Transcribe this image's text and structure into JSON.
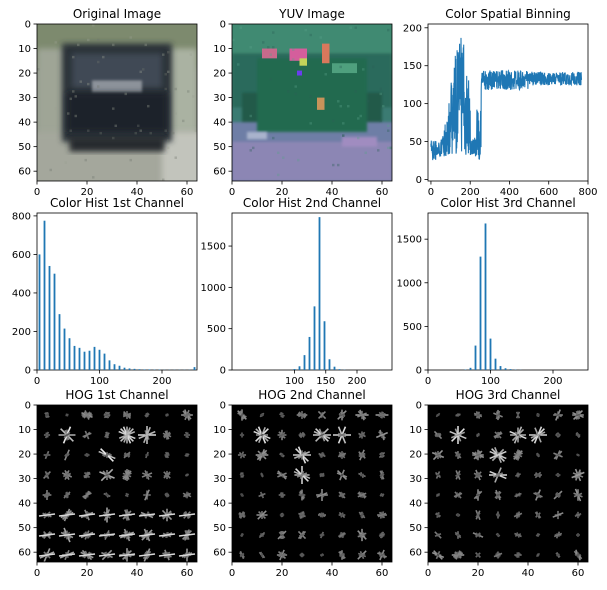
{
  "figure": {
    "panels": [
      {
        "id": "original",
        "title": "Original Image"
      },
      {
        "id": "yuv",
        "title": "YUV Image"
      },
      {
        "id": "spatial",
        "title": "Color Spatial Binning"
      },
      {
        "id": "hist1",
        "title": "Color Hist 1st Channel"
      },
      {
        "id": "hist2",
        "title": "Color Hist 2nd Channel"
      },
      {
        "id": "hist3",
        "title": "Color Hist 3rd Channel"
      },
      {
        "id": "hog1",
        "title": "HOG 1st Channel"
      },
      {
        "id": "hog2",
        "title": "HOG 2nd Channel"
      },
      {
        "id": "hog3",
        "title": "HOG 3rd Channel"
      }
    ]
  },
  "chart_data": [
    {
      "panel": "original",
      "type": "image",
      "title": "Original Image",
      "xlim": [
        0,
        64
      ],
      "ylim": [
        64,
        0
      ],
      "xticks": [
        0,
        20,
        40,
        60
      ],
      "yticks": [
        0,
        10,
        20,
        30,
        40,
        50,
        60
      ],
      "content": "blurred rear view of a dark car on a road"
    },
    {
      "panel": "yuv",
      "type": "image",
      "title": "YUV Image",
      "xlim": [
        0,
        64
      ],
      "ylim": [
        64,
        0
      ],
      "xticks": [
        0,
        20,
        40,
        60
      ],
      "yticks": [
        0,
        10,
        20,
        30,
        40,
        50,
        60
      ],
      "content": "same image rendered as YUV channels (teal / green / purple tones)"
    },
    {
      "panel": "spatial",
      "type": "line",
      "title": "Color Spatial Binning",
      "xlim": [
        -15,
        800
      ],
      "ylim": [
        -2,
        205
      ],
      "xticks": [
        0,
        200,
        400,
        600,
        800
      ],
      "yticks": [
        0,
        50,
        100,
        150,
        200
      ],
      "color": "#1f77b4",
      "n_points": 768,
      "segments": [
        {
          "x_range": [
            0,
            256
          ],
          "y_range": [
            10,
            190
          ],
          "profile": "noisy, peaks ~190 near x=150"
        },
        {
          "x_range": [
            256,
            768
          ],
          "y_range": [
            108,
            150
          ],
          "profile": "noisy, mean ~128"
        }
      ]
    },
    {
      "panel": "hist1",
      "type": "bar",
      "title": "Color Hist 1st Channel",
      "xlim": [
        0,
        256
      ],
      "ylim": [
        0,
        815
      ],
      "xticks": [
        0,
        100,
        200
      ],
      "yticks": [
        0,
        200,
        400,
        600,
        800
      ],
      "color": "#1f77b4",
      "bin_width": 8,
      "x": [
        4,
        12,
        20,
        28,
        36,
        44,
        52,
        60,
        68,
        76,
        84,
        92,
        100,
        108,
        116,
        124,
        132,
        140,
        148,
        156,
        164,
        172,
        180,
        188,
        196,
        204,
        212,
        220,
        228,
        236,
        244,
        252
      ],
      "values": [
        600,
        775,
        540,
        500,
        290,
        215,
        165,
        125,
        115,
        95,
        100,
        120,
        105,
        85,
        50,
        30,
        22,
        12,
        8,
        6,
        4,
        3,
        3,
        2,
        2,
        1,
        1,
        1,
        1,
        1,
        1,
        15
      ]
    },
    {
      "panel": "hist2",
      "type": "bar",
      "title": "Color Hist 2nd Channel",
      "xlim": [
        0,
        256
      ],
      "ylim": [
        0,
        1900
      ],
      "xticks": [
        100,
        150,
        200
      ],
      "yticks": [
        0,
        500,
        1000,
        1500
      ],
      "color": "#1f77b4",
      "bin_width": 8,
      "x": [
        4,
        12,
        20,
        28,
        36,
        44,
        52,
        60,
        68,
        76,
        84,
        92,
        100,
        108,
        116,
        124,
        132,
        140,
        148,
        156,
        164,
        172,
        180,
        188,
        196,
        204,
        212,
        220,
        228,
        236,
        244,
        252
      ],
      "values": [
        0,
        0,
        0,
        0,
        0,
        0,
        0,
        0,
        0,
        0,
        0,
        0,
        12,
        45,
        180,
        400,
        770,
        1850,
        590,
        130,
        40,
        10,
        3,
        0,
        0,
        0,
        0,
        0,
        0,
        0,
        0,
        0
      ]
    },
    {
      "panel": "hist3",
      "type": "bar",
      "title": "Color Hist 3rd Channel",
      "xlim": [
        0,
        256
      ],
      "ylim": [
        0,
        1800
      ],
      "xticks": [
        0,
        100,
        200
      ],
      "yticks": [
        0,
        500,
        1000,
        1500
      ],
      "color": "#1f77b4",
      "bin_width": 8,
      "x": [
        4,
        12,
        20,
        28,
        36,
        44,
        52,
        60,
        68,
        76,
        84,
        92,
        100,
        108,
        116,
        124,
        132,
        140,
        148,
        156,
        164,
        172,
        180,
        188,
        196,
        204,
        212,
        220,
        228,
        236,
        244,
        252
      ],
      "values": [
        0,
        0,
        0,
        0,
        0,
        0,
        0,
        5,
        25,
        280,
        1300,
        1680,
        360,
        130,
        45,
        20,
        10,
        4,
        2,
        0,
        0,
        0,
        0,
        0,
        0,
        0,
        0,
        0,
        0,
        0,
        0,
        0
      ]
    },
    {
      "panel": "hog1",
      "type": "image",
      "title": "HOG 1st Channel",
      "xlim": [
        0,
        64
      ],
      "ylim": [
        64,
        0
      ],
      "xticks": [
        0,
        20,
        40,
        60
      ],
      "yticks": [
        0,
        10,
        20,
        30,
        40,
        50,
        60
      ],
      "content": "8x8 grid of HOG gradient glyphs, white on black"
    },
    {
      "panel": "hog2",
      "type": "image",
      "title": "HOG 2nd Channel",
      "xlim": [
        0,
        64
      ],
      "ylim": [
        64,
        0
      ],
      "xticks": [
        0,
        20,
        40,
        60
      ],
      "yticks": [
        0,
        10,
        20,
        30,
        40,
        50,
        60
      ],
      "content": "8x8 grid of HOG gradient glyphs, white on black"
    },
    {
      "panel": "hog3",
      "type": "image",
      "title": "HOG 3rd Channel",
      "xlim": [
        0,
        64
      ],
      "ylim": [
        64,
        0
      ],
      "xticks": [
        0,
        20,
        40,
        60
      ],
      "yticks": [
        0,
        10,
        20,
        30,
        40,
        50,
        60
      ],
      "content": "8x8 grid of HOG gradient glyphs, white on black"
    }
  ]
}
